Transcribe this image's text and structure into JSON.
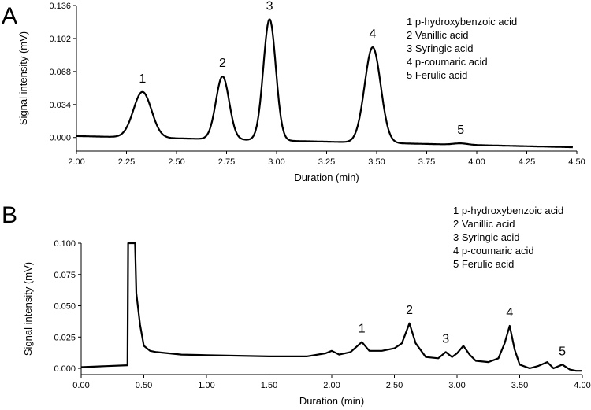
{
  "chart_data": [
    {
      "type": "line",
      "panel_label": "A",
      "xlabel": "Duration (min)",
      "ylabel": "Signal intensity (mV)",
      "xlim": [
        2.0,
        4.5
      ],
      "ylim": [
        -0.014,
        0.136
      ],
      "xticks": [
        "2.00",
        "2.25",
        "2.50",
        "2.75",
        "3.00",
        "3.25",
        "3.50",
        "3.75",
        "4.00",
        "4.25",
        "4.50"
      ],
      "yticks": [
        "0.000",
        "0.034",
        "0.068",
        "0.102",
        "0.136"
      ],
      "baseline": {
        "start": [
          2.0,
          0.0015
        ],
        "end": [
          4.48,
          -0.01
        ]
      },
      "peaks": [
        {
          "label": "1",
          "x": 2.33,
          "y": 0.047
        },
        {
          "label": "2",
          "x": 2.73,
          "y": 0.063
        },
        {
          "label": "3",
          "x": 2.965,
          "y": 0.122
        },
        {
          "label": "4",
          "x": 3.48,
          "y": 0.093
        },
        {
          "label": "5",
          "x": 3.92,
          "y": -0.006
        }
      ],
      "legend": [
        "1 p-hydroxybenzoic acid",
        "2 Vanillic acid",
        "3 Syringic acid",
        "4 p-coumaric acid",
        "5 Ferulic acid"
      ],
      "legend_position": "top-right",
      "grid": false
    },
    {
      "type": "line",
      "panel_label": "B",
      "xlabel": "Duration (min)",
      "ylabel": "Signal intensity (mV)",
      "xlim": [
        0.0,
        4.0
      ],
      "ylim": [
        -0.005,
        0.1
      ],
      "xticks": [
        "0.00",
        "0.50",
        "1.00",
        "1.50",
        "2.00",
        "2.50",
        "3.00",
        "3.50",
        "4.00"
      ],
      "yticks": [
        "0.000",
        "0.025",
        "0.050",
        "0.075",
        "0.100"
      ],
      "trace_points": [
        [
          0.0,
          0.001
        ],
        [
          0.2,
          0.0018
        ],
        [
          0.37,
          0.0025
        ],
        [
          0.375,
          0.1
        ],
        [
          0.43,
          0.1
        ],
        [
          0.44,
          0.06
        ],
        [
          0.47,
          0.035
        ],
        [
          0.5,
          0.018
        ],
        [
          0.55,
          0.014
        ],
        [
          0.6,
          0.013
        ],
        [
          0.8,
          0.011
        ],
        [
          1.0,
          0.0105
        ],
        [
          1.5,
          0.0095
        ],
        [
          1.8,
          0.0095
        ],
        [
          1.95,
          0.012
        ],
        [
          2.0,
          0.014
        ],
        [
          2.06,
          0.011
        ],
        [
          2.15,
          0.013
        ],
        [
          2.24,
          0.021
        ],
        [
          2.3,
          0.014
        ],
        [
          2.4,
          0.014
        ],
        [
          2.5,
          0.016
        ],
        [
          2.56,
          0.02
        ],
        [
          2.62,
          0.036
        ],
        [
          2.67,
          0.02
        ],
        [
          2.75,
          0.009
        ],
        [
          2.85,
          0.008
        ],
        [
          2.91,
          0.013
        ],
        [
          2.96,
          0.009
        ],
        [
          3.0,
          0.012
        ],
        [
          3.05,
          0.018
        ],
        [
          3.1,
          0.011
        ],
        [
          3.15,
          0.006
        ],
        [
          3.25,
          0.005
        ],
        [
          3.33,
          0.008
        ],
        [
          3.38,
          0.02
        ],
        [
          3.42,
          0.034
        ],
        [
          3.46,
          0.015
        ],
        [
          3.5,
          0.003
        ],
        [
          3.58,
          0.0
        ],
        [
          3.65,
          0.002
        ],
        [
          3.72,
          0.005
        ],
        [
          3.77,
          0.0
        ],
        [
          3.84,
          0.003
        ],
        [
          3.9,
          -0.001
        ],
        [
          3.95,
          -0.002
        ],
        [
          4.0,
          -0.002
        ]
      ],
      "peaks": [
        {
          "label": "1",
          "x": 2.24,
          "y": 0.021
        },
        {
          "label": "2",
          "x": 2.62,
          "y": 0.036
        },
        {
          "label": "3",
          "x": 2.91,
          "y": 0.013
        },
        {
          "label": "4",
          "x": 3.42,
          "y": 0.034
        },
        {
          "label": "5",
          "x": 3.84,
          "y": 0.003
        }
      ],
      "legend": [
        "1 p-hydroxybenzoic acid",
        "2 Vanillic acid",
        "3 Syringic acid",
        "4 p-coumaric acid",
        "5 Ferulic acid"
      ],
      "legend_position": "top-right",
      "grid": false
    }
  ]
}
